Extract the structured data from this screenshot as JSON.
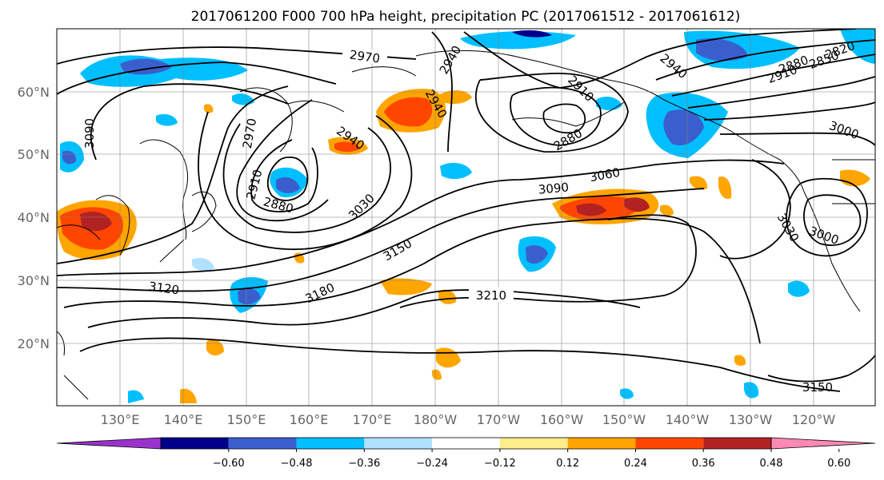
{
  "title": "2017061200 F000 700 hPa height, precipitation PC (2017061512 - 2017061612)",
  "latitude_labels": [
    "60°N",
    "50°N",
    "40°N",
    "30°N",
    "20°N"
  ],
  "longitude_labels": [
    "130°E",
    "140°E",
    "150°E",
    "160°E",
    "170°E",
    "180°W",
    "170°W",
    "160°W",
    "150°W",
    "140°W",
    "130°W",
    "120°W"
  ],
  "colorbar": {
    "colors": [
      "#9932cc",
      "#00008b",
      "#3a5fcd",
      "#00bfff",
      "#b0e2ff",
      "#ffffff",
      "#ffec8b",
      "#ffa500",
      "#ff4500",
      "#b22222",
      "#ff88b4"
    ],
    "ticks": [
      "−0.60",
      "−0.48",
      "−0.36",
      "−0.24",
      "−0.12",
      "0.12",
      "0.24",
      "0.36",
      "0.48",
      "0.60"
    ]
  },
  "contour_labels": [
    "2970",
    "2940",
    "2910",
    "2880",
    "2850",
    "2820",
    "2940",
    "2910",
    "2880",
    "3000",
    "3090",
    "2970",
    "2940",
    "2910",
    "2880",
    "3030",
    "3150",
    "3120",
    "3180",
    "3210",
    "3090",
    "3060",
    "3030",
    "3000",
    "3150"
  ]
}
